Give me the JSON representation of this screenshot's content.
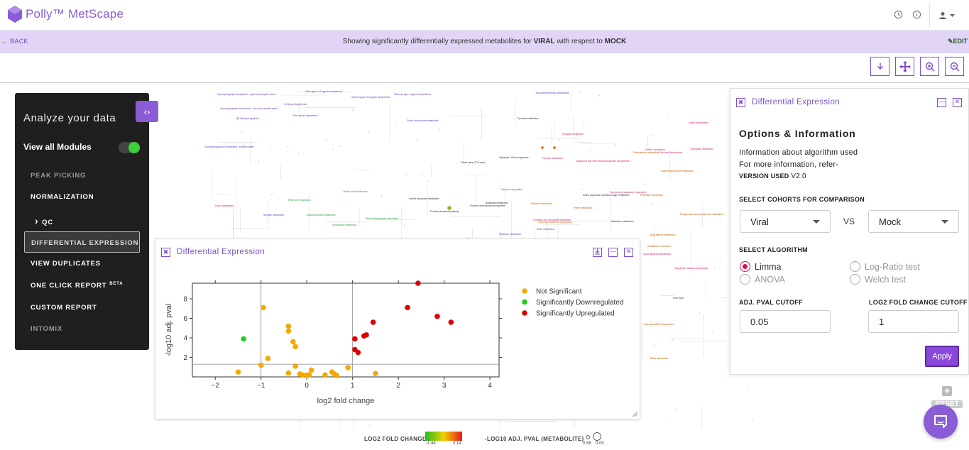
{
  "app": {
    "brand": "Polly™ MetScape",
    "colors": {
      "accent": "#8a5cd6",
      "banner": "#e1d4f7",
      "significant_up": "#e00000",
      "significant_down": "#22cc22",
      "not_significant": "#f5a800"
    }
  },
  "header": {
    "icons": [
      "history-icon",
      "info-icon",
      "user-icon",
      "caret-down-icon"
    ]
  },
  "banner": {
    "back": "BACK",
    "prefix": "Showing significantly differentially expressed metabolites for ",
    "group": "VIRAL",
    "middle": " with respect to ",
    "reference": "MOCK",
    "edit": "EDIT"
  },
  "toolbar": {
    "buttons": [
      "download-icon",
      "move-icon",
      "zoom-in-icon",
      "zoom-out-icon"
    ]
  },
  "sidebar": {
    "title": "Analyze your data",
    "view_all": "View all Modules",
    "items": [
      {
        "label": "PEAK PICKING",
        "state": "muted"
      },
      {
        "label": "NORMALIZATION",
        "state": "normal"
      },
      {
        "label": "QC",
        "state": "normal"
      },
      {
        "label": "DIFFERENTIAL EXPRESSION",
        "state": "active"
      },
      {
        "label": "VIEW DUPLICATES",
        "state": "normal"
      },
      {
        "label": "ONE CLICK REPORT",
        "badge": "BETA",
        "state": "normal"
      },
      {
        "label": "CUSTOM REPORT",
        "state": "normal"
      },
      {
        "label": "INTOMIX",
        "state": "muted"
      }
    ]
  },
  "volcano_panel": {
    "title": "Differential Expression",
    "legend": [
      "Not Significant",
      "Significantly Downregulated",
      "Significantly Upregulated"
    ]
  },
  "chart_data": {
    "type": "scatter",
    "xlabel": "log2 fold change",
    "ylabel": "-log10 adj. pval",
    "xlim": [
      -2.5,
      4.2
    ],
    "ylim": [
      0,
      9.6
    ],
    "xticks": [
      -2,
      -1,
      0,
      1,
      2,
      3,
      4
    ],
    "yticks": [
      2,
      4,
      6,
      8
    ],
    "vlines": [
      -1,
      1
    ],
    "hline": 1.3,
    "series": [
      {
        "name": "Not Significant",
        "color": "#f5a800",
        "points": [
          [
            -0.95,
            7.1
          ],
          [
            -0.4,
            5.2
          ],
          [
            -0.4,
            4.7
          ],
          [
            -0.3,
            3.6
          ],
          [
            -0.25,
            3.1
          ],
          [
            -0.85,
            1.9
          ],
          [
            -1.0,
            1.2
          ],
          [
            -1.5,
            0.5
          ],
          [
            -0.4,
            0.4
          ],
          [
            -0.25,
            1.1
          ],
          [
            -0.15,
            0.3
          ],
          [
            0.0,
            0.2
          ],
          [
            0.1,
            0.7
          ],
          [
            0.4,
            0.2
          ],
          [
            0.55,
            0.5
          ],
          [
            0.6,
            0.3
          ],
          [
            0.65,
            0.15
          ],
          [
            0.9,
            0.95
          ],
          [
            1.5,
            0.35
          ],
          [
            -0.1,
            0.2
          ],
          [
            0.05,
            0.2
          ]
        ]
      },
      {
        "name": "Significantly Downregulated",
        "color": "#22cc22",
        "points": [
          [
            -1.38,
            3.9
          ]
        ]
      },
      {
        "name": "Significantly Upregulated",
        "color": "#e00000",
        "points": [
          [
            2.43,
            9.6
          ],
          [
            2.2,
            7.1
          ],
          [
            2.85,
            6.2
          ],
          [
            3.15,
            5.6
          ],
          [
            1.45,
            5.6
          ],
          [
            1.3,
            4.3
          ],
          [
            1.25,
            4.2
          ],
          [
            1.05,
            3.9
          ],
          [
            1.05,
            2.8
          ],
          [
            1.12,
            2.5
          ]
        ]
      }
    ]
  },
  "options_panel": {
    "title": "Differential Expression",
    "heading": "Options & Information",
    "info_line1": "Information about algorithm used",
    "info_line2": "For more information, refer-",
    "version_label": "VERSION USED",
    "version_value": "V2.0",
    "cohorts_label": "SELECT COHORTS FOR COMPARISON",
    "cohort_a": "Viral",
    "vs": "VS",
    "cohort_b": "Mock",
    "algorithm_label": "SELECT ALGORITHM",
    "algorithms": [
      {
        "label": "Limma",
        "selected": true,
        "enabled": true
      },
      {
        "label": "Log-Ratio test",
        "selected": false,
        "enabled": false
      },
      {
        "label": "ANOVA",
        "selected": false,
        "enabled": false
      },
      {
        "label": "Welch test",
        "selected": false,
        "enabled": false
      }
    ],
    "pval_label": "ADJ. PVAL CUTOFF",
    "pval_value": "0.05",
    "fc_label": "LOG2 FOLD CHANGE CUTOFF",
    "fc_value": "1",
    "apply": "Apply"
  },
  "reset": "RESET",
  "bottom_legend": {
    "fc_label": "LOG2 FOLD CHANGE",
    "fc_min": "-1.48",
    "fc_max": "3.14",
    "pval_label": "-LOG10 ADJ. PVAL (METABOLITE)",
    "pval_min": "0.88",
    "pval_max": "0.00"
  },
  "map_labels": [
    {
      "t": "Glycosphingolipid biosynthesis - globo and isoglobo series",
      "c": "#6a3fc0"
    },
    {
      "t": "Other types of O-glycan biosynthesis",
      "c": "#6a3fc0"
    },
    {
      "t": "Various types of N-glycan biosynthesis",
      "c": "#6a3fc0"
    },
    {
      "t": "Mannose type O-glycan biosynthesis",
      "c": "#6a3fc0"
    },
    {
      "t": "Lipoarabinomannan biosynthesis",
      "c": "#6a3fc0"
    },
    {
      "t": "Glycosphingolipid biosynthesis - lacto and neolacto series",
      "c": "#6a3fc0"
    },
    {
      "t": "N-Glycan biosynthesis",
      "c": "#6a3fc0"
    },
    {
      "t": "Starch and sucrose metabolism",
      "c": "#6a3fc0"
    },
    {
      "t": "Other glycan degradation",
      "c": "#6a3fc0"
    },
    {
      "t": "[B] Glycosphingolipids",
      "c": "#6a3fc0"
    },
    {
      "t": "Glycosaminoglycan biosynthesis - keratan sulfate",
      "c": "#6a3fc0"
    },
    {
      "t": "Tyrosine metabolism",
      "c": "#d8236b"
    },
    {
      "t": "Pyruvate metabolism",
      "c": "#d8236b"
    },
    {
      "t": "Caffeine metabolism",
      "c": "#d8236b"
    },
    {
      "t": "Taurine and hypotaurine metabolism",
      "c": "#d8236b"
    },
    {
      "t": "Lysine biosynthesis",
      "c": "#d8236b"
    },
    {
      "t": "Flavonoid biosynthesis",
      "c": "#d8236b"
    },
    {
      "t": "Tryptophan metabolism",
      "c": "#d8236b"
    },
    {
      "t": "Lysine degradation",
      "c": "#d8236b"
    },
    {
      "t": "Linoleic acid metabolism",
      "c": "#2aa04a"
    },
    {
      "t": "Glycerophospholipid metabolism",
      "c": "#2aa04a"
    },
    {
      "t": "Ether lipid metabolism",
      "c": "#2aa04a"
    },
    {
      "t": "Arachidonic acid metabolism",
      "c": "#2aa04a"
    },
    {
      "t": "Sphingolipid metabolism",
      "c": "#2aa04a"
    },
    {
      "t": "Fatty acid degradation",
      "c": "#2aa04a"
    },
    {
      "t": "Citrate cycle (TCA cycle)",
      "c": "#333333"
    },
    {
      "t": "Pentose phosphate pathway",
      "c": "#333333"
    },
    {
      "t": "Glycolysis / Gluconeogenesis",
      "c": "#333333"
    },
    {
      "t": "Pyruvate metabolism",
      "c": "#333333"
    },
    {
      "t": "Fructose and mannose metabolism",
      "c": "#333333"
    },
    {
      "t": "Amino sugar and nucleotide sugar metabolism",
      "c": "#333333"
    },
    {
      "t": "Galactose metabolism",
      "c": "#333333"
    },
    {
      "t": "Inositol phosphate metabolism",
      "c": "#333333"
    },
    {
      "t": "Butanoate metabolism",
      "c": "#333333"
    },
    {
      "t": "Phenylalanine metabolism",
      "c": "#c45f00"
    },
    {
      "t": "Arginine and proline metabolism",
      "c": "#c45f00"
    },
    {
      "t": "Purine metabolism",
      "c": "#c45f00"
    },
    {
      "t": "Pyrimidine metabolism",
      "c": "#c45f00"
    },
    {
      "t": "Histidine metabolism",
      "c": "#c45f00"
    },
    {
      "t": "Beta-Alanine metabolism",
      "c": "#c45f00"
    },
    {
      "t": "Glutathione metabolism",
      "c": "#c45f00"
    },
    {
      "t": "Phosphonate and phosphinate metabolism",
      "c": "#c45f00"
    },
    {
      "t": "Ubiquinone and other terpenoid-quinone biosynthesis",
      "c": "#d8236b"
    },
    {
      "t": "Porphyrin and chlorophyll metabolism",
      "c": "#d8236b"
    },
    {
      "t": "Indole alkaloid biosynthesis",
      "c": "#d8236b"
    },
    {
      "t": "Isoquinoline alkaloid biosynthesis",
      "c": "#d8236b"
    },
    {
      "t": "Aminoacyl-tRNA biosynthesis",
      "c": "#c45f00"
    },
    {
      "t": "Biotin metabolism",
      "c": "#c45f00"
    },
    {
      "t": "Terpenoid backbone biosynthesis",
      "c": "#c45f00"
    },
    {
      "t": "Sulfur metabolism",
      "c": "#6a3fc0"
    },
    {
      "t": "Riboflavin metabolism",
      "c": "#6a3fc0"
    },
    {
      "t": "Nitrogen metabolism",
      "c": "#6a3fc0"
    },
    {
      "t": "Urea cycle",
      "c": "#333333"
    }
  ]
}
